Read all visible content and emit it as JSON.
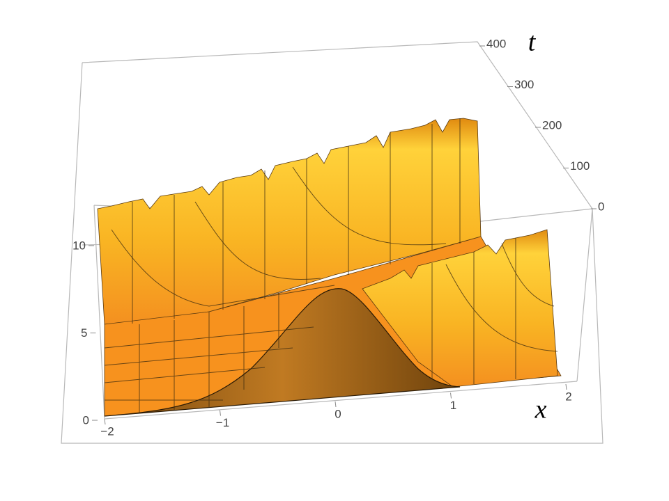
{
  "chart_data": {
    "type": "surface3d",
    "x_label": "x",
    "t_label": "t",
    "xlim": [
      -2,
      2
    ],
    "xticks": [
      {
        "value": -2,
        "label": "−2"
      },
      {
        "value": -1,
        "label": "−1"
      },
      0,
      1,
      2
    ],
    "tlim": [
      0,
      400
    ],
    "tticks": [
      0,
      100,
      200,
      300,
      400
    ],
    "zticks": [
      0,
      5,
      10
    ],
    "color": "#f7a21c"
  }
}
